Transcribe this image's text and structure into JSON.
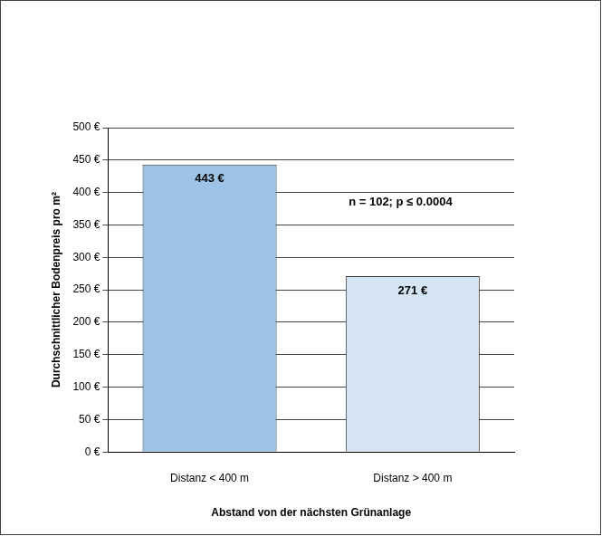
{
  "chart_data": {
    "type": "bar",
    "categories": [
      "Distanz < 400 m",
      "Distanz > 400 m"
    ],
    "values": [
      443,
      271
    ],
    "value_labels": [
      "443 €",
      "271 €"
    ],
    "data_labels": true,
    "colors": [
      "#9dc3e6",
      "#d5e5f3"
    ],
    "x_label": "Abstand von der nächsten Grünanlage",
    "y_label": "Durchschnittlicher Bodenpreis pro m²",
    "annotation": "n = 102; p ≤ 0.0004",
    "ylim": [
      0,
      500
    ],
    "yticks": [
      {
        "value": 0,
        "label": "0 €"
      },
      {
        "value": 50,
        "label": "50 €"
      },
      {
        "value": 100,
        "label": "100 €"
      },
      {
        "value": 150,
        "label": "150 €"
      },
      {
        "value": 200,
        "label": "200 €"
      },
      {
        "value": 250,
        "label": "250 €"
      },
      {
        "value": 300,
        "label": "300 €"
      },
      {
        "value": 350,
        "label": "350 €"
      },
      {
        "value": 400,
        "label": "400 €"
      },
      {
        "value": 450,
        "label": "450 €"
      },
      {
        "value": 500,
        "label": "500 €"
      }
    ],
    "grid": true
  }
}
